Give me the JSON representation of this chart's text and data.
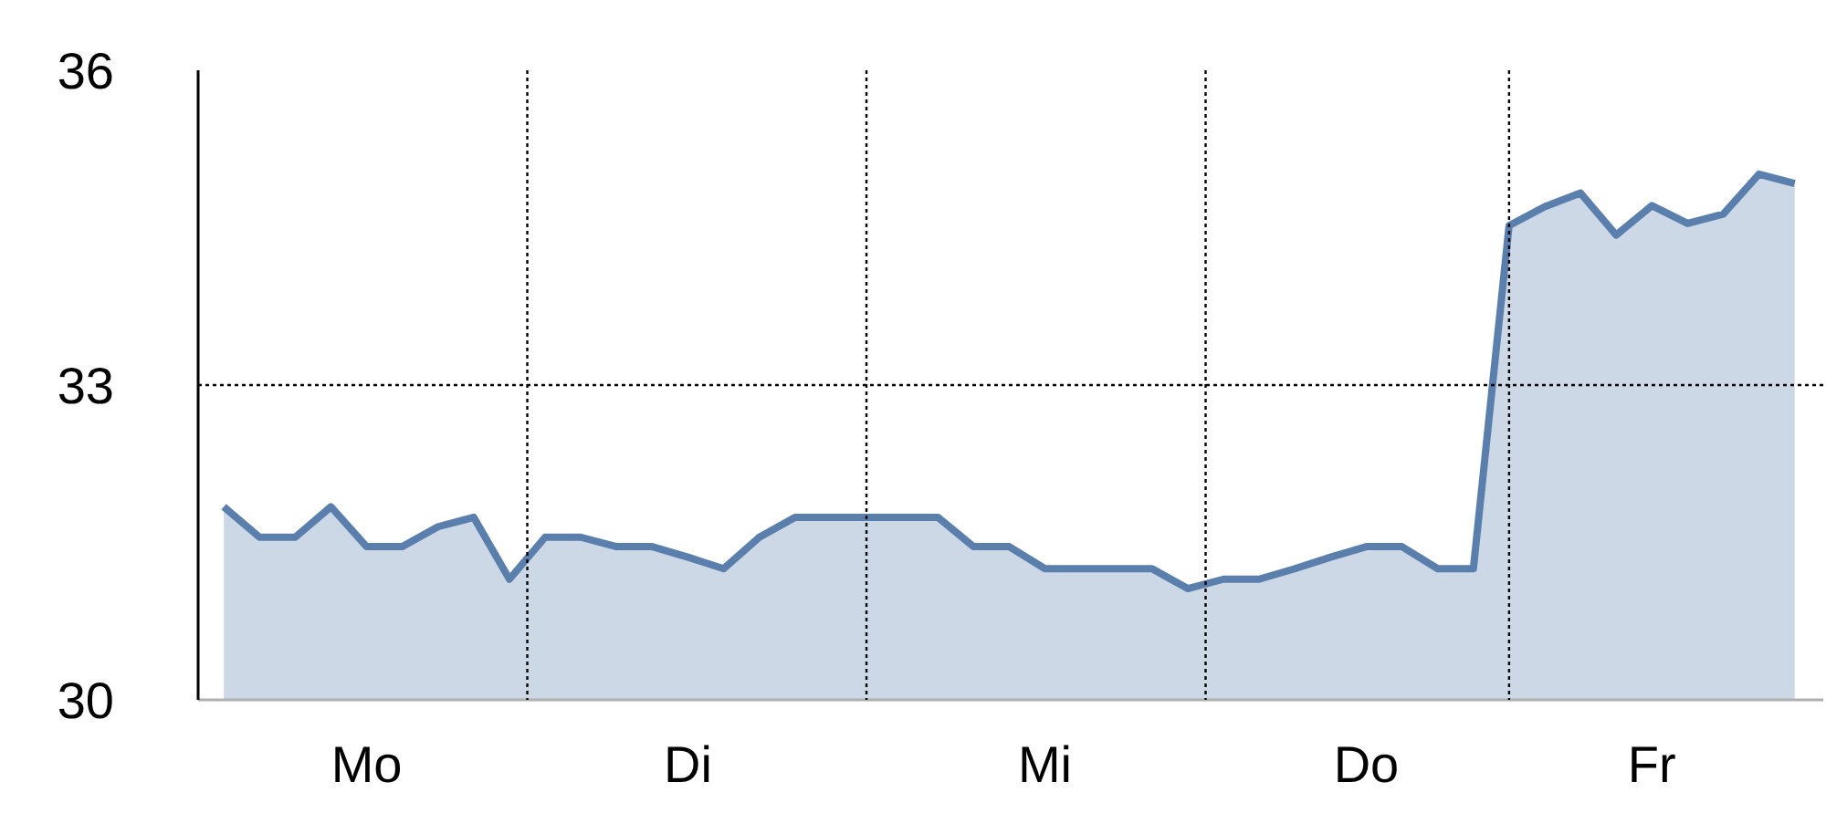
{
  "chart_data": {
    "type": "area",
    "categories": [
      null,
      null,
      null,
      null,
      "Mo",
      null,
      null,
      null,
      null,
      null,
      null,
      null,
      null,
      "Di",
      null,
      null,
      null,
      null,
      null,
      null,
      null,
      null,
      null,
      "Mi",
      null,
      null,
      null,
      null,
      null,
      null,
      null,
      null,
      "Do",
      null,
      null,
      null,
      null,
      null,
      null,
      null,
      "Fr",
      null,
      null,
      null,
      null
    ],
    "series": [
      {
        "color": "#5b7fad",
        "values": [
          31.84,
          31.55,
          31.55,
          31.84,
          31.46,
          31.46,
          31.65,
          31.74,
          31.15,
          31.55,
          31.55,
          31.46,
          31.46,
          31.36,
          31.25,
          31.55,
          31.74,
          31.74,
          31.74,
          31.74,
          31.74,
          31.46,
          31.46,
          31.25,
          31.25,
          31.25,
          31.25,
          31.06,
          31.15,
          31.15,
          31.25,
          31.36,
          31.46,
          31.46,
          31.25,
          31.25,
          34.52,
          34.7,
          34.83,
          34.43,
          34.71,
          34.54,
          34.63,
          35.01,
          34.92
        ]
      }
    ],
    "ylim": [
      30,
      36
    ],
    "yticks": [
      30,
      33,
      36
    ],
    "ref_lines": [
      {
        "axis": "y",
        "value": 33,
        "color": "#000000",
        "line_style": "dotted"
      }
    ]
  }
}
